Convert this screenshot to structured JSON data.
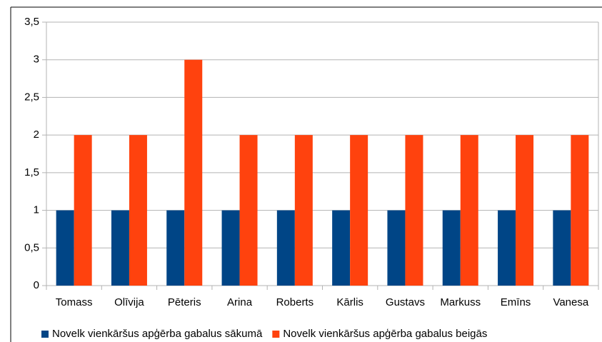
{
  "chart_data": {
    "type": "bar",
    "categories": [
      "Tomass",
      "Olīvija",
      "Pēteris",
      "Arina",
      "Roberts",
      "Kārlis",
      "Gustavs",
      "Markuss",
      "Emīns",
      "Vanesa"
    ],
    "series": [
      {
        "name": "Novelk vienkāršus apģērba gabalus sākumā",
        "color": "#004586",
        "values": [
          1,
          1,
          1,
          1,
          1,
          1,
          1,
          1,
          1,
          1
        ]
      },
      {
        "name": "Novelk vienkāršus apģērba gabalus beigās",
        "color": "#ff420e",
        "values": [
          2,
          2,
          3,
          2,
          2,
          2,
          2,
          2,
          2,
          2
        ]
      }
    ],
    "ylim": [
      0,
      3.5
    ],
    "yticks": [
      0,
      {
        "value": 0.5,
        "label": "0,5"
      },
      1,
      {
        "value": 1.5,
        "label": "1,5"
      },
      2,
      {
        "value": 2.5,
        "label": "2,5"
      },
      3,
      {
        "value": 3.5,
        "label": "3,5"
      }
    ],
    "grid": true,
    "legend": "bottom"
  }
}
